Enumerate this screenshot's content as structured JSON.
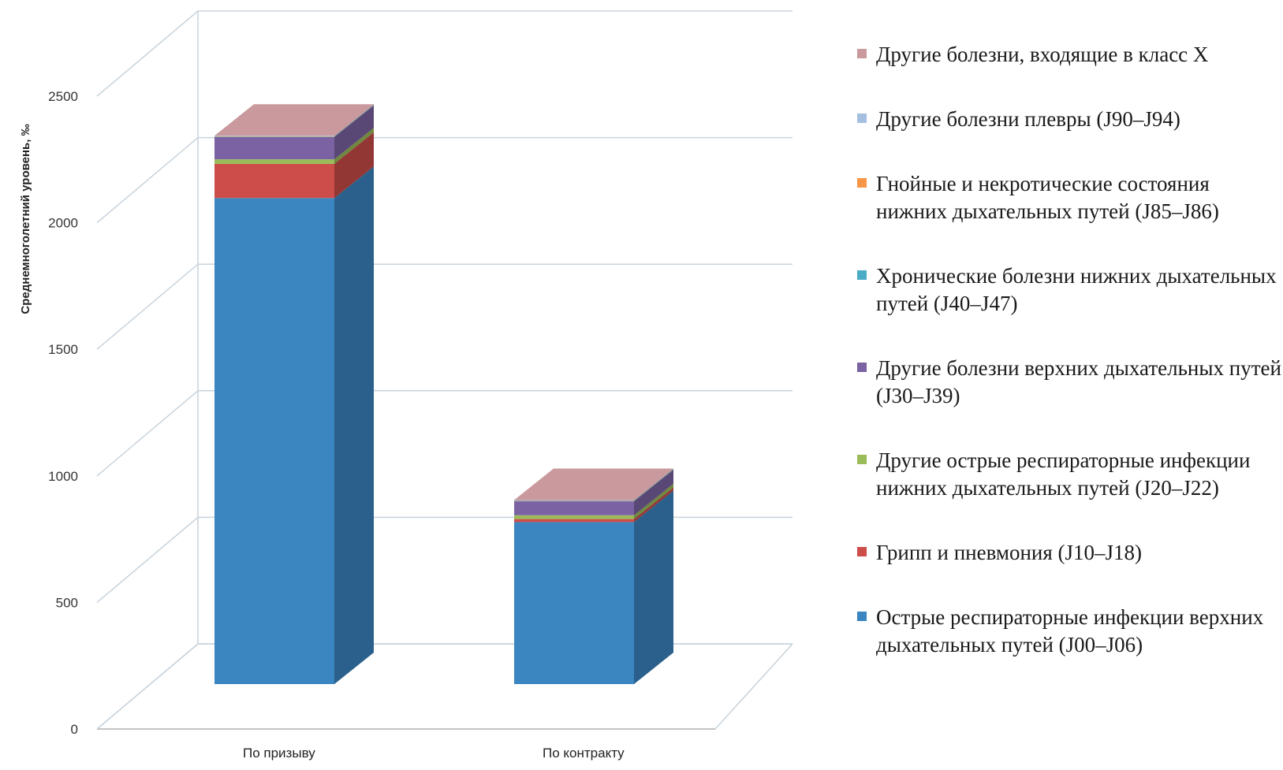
{
  "chart_data": {
    "type": "bar",
    "stacked": true,
    "three_d": true,
    "title": "",
    "xlabel": "",
    "ylabel": "Среднемноголетний уровень, ‰",
    "ylim": [
      0,
      2500
    ],
    "yticks": [
      0,
      500,
      1000,
      1500,
      2000,
      2500
    ],
    "grid": true,
    "legend_position": "right",
    "categories": [
      "По призыву",
      "По контракту"
    ],
    "series": [
      {
        "name": "Острые респираторные инфекции верхних дыхательных путей (J00–J06)",
        "color": "#3b86c1",
        "values": [
          1920,
          640
        ]
      },
      {
        "name": "Грипп  и  пневмония (J10–J18)",
        "color": "#cc4d4a",
        "values": [
          135,
          12
        ]
      },
      {
        "name": "Другие острые респираторные инфекции нижних дыхательных путей (J20–J22)",
        "color": "#9bbb59",
        "values": [
          18,
          15
        ]
      },
      {
        "name": "Другие болезни верхних дыхательных путей (J30–J39)",
        "color": "#7b62a3",
        "values": [
          88,
          55
        ]
      },
      {
        "name": "Хронические болезни нижних дыхательных путей (J40–J47)",
        "color": "#4bacc6",
        "values": [
          2,
          2
        ]
      },
      {
        "name": "Гнойные и некротические состояния нижних дыхательных путей (J85–J86)",
        "color": "#f79646",
        "values": [
          1,
          1
        ]
      },
      {
        "name": "Другие болезни плевры (J90–J94)",
        "color": "#a5bfe0",
        "values": [
          2,
          2
        ]
      },
      {
        "name": "Другие болезни, входящие в класс X",
        "color": "#c9999d",
        "values": [
          0,
          0
        ]
      }
    ],
    "legend_order": [
      7,
      6,
      5,
      4,
      3,
      2,
      1,
      0
    ]
  }
}
